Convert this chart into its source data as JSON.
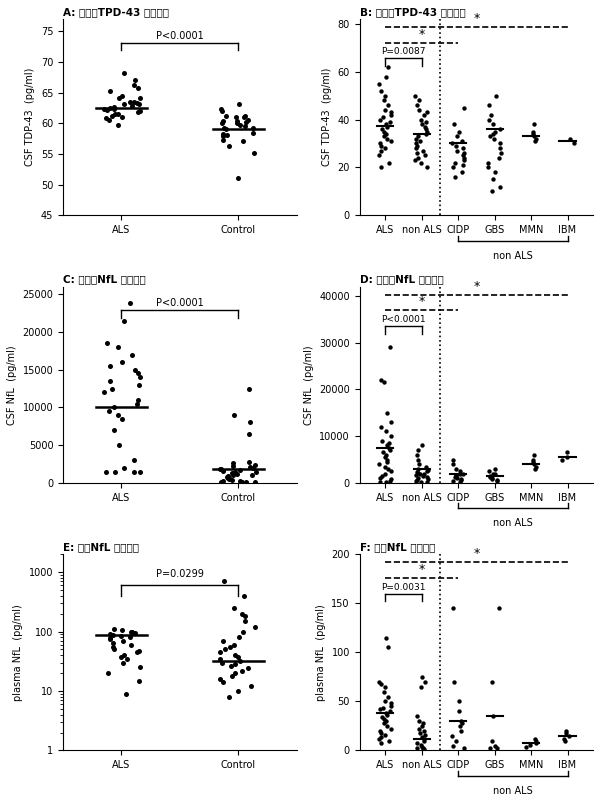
{
  "panel_titles": [
    "A: 脑脊液TPD-43 探索队列",
    "B: 脑脊液TPD-43 验证队列",
    "C: 脑脊液NfL 探索队列",
    "D: 脑脊液NfL 探索队列",
    "E: 血液NfL 探索队列",
    "F: 血液NfL 探索队列"
  ],
  "panel_A": {
    "groups": [
      "ALS",
      "Control"
    ],
    "medians": [
      62.5,
      59.0
    ],
    "ylim": [
      45,
      77
    ],
    "yticks": [
      45,
      50,
      55,
      60,
      65,
      70,
      75
    ],
    "ylabel": "CSF TDP-43  (pg/ml)",
    "pvalue": "P<0.0001",
    "ALS_data": [
      63.5,
      63.2,
      62.1,
      61.5,
      62.8,
      64.5,
      65.2,
      67.1,
      65.8,
      64.2,
      62.5,
      63.1,
      61.2,
      62.4,
      61.8,
      63.3,
      62.7,
      60.5,
      59.8,
      61.0,
      62.3,
      64.1,
      66.3,
      68.2,
      63.4,
      62.0,
      61.5,
      60.8
    ],
    "Control_data": [
      63.1,
      62.4,
      61.2,
      60.5,
      59.8,
      58.3,
      61.0,
      60.2,
      59.5,
      60.1,
      58.4,
      57.2,
      59.0,
      60.3,
      61.1,
      62.0,
      60.4,
      59.2,
      58.0,
      57.1,
      56.3,
      55.2,
      59.3,
      60.0,
      61.2,
      58.1,
      51.0
    ]
  },
  "panel_B": {
    "groups": [
      "ALS",
      "non ALS",
      "CIDP",
      "GBS",
      "MMN",
      "IBM"
    ],
    "medians": [
      37.5,
      34.0,
      30.0,
      36.0,
      33.0,
      31.0
    ],
    "ylim": [
      0,
      82
    ],
    "yticks": [
      0,
      20,
      40,
      60,
      80
    ],
    "ylabel": "CSF TDP-43  (pg/ml)",
    "pvalue": "P=0.0087",
    "ALS_data": [
      62,
      58,
      55,
      52,
      50,
      48,
      46,
      44,
      43,
      42,
      41,
      40,
      39,
      38,
      37,
      36,
      35,
      34,
      33,
      32,
      31,
      30,
      29,
      28,
      27,
      25,
      22,
      20
    ],
    "nonALS_data": [
      50,
      48,
      46,
      44,
      43,
      42,
      40,
      39,
      38,
      37,
      36,
      35,
      34,
      33,
      32,
      31,
      30,
      29,
      28,
      27,
      26,
      25,
      24,
      23,
      22,
      20
    ],
    "CIDP_data": [
      45,
      38,
      35,
      33,
      31,
      30,
      29,
      28,
      27,
      26,
      25,
      24,
      23,
      22,
      21,
      20,
      18,
      16
    ],
    "GBS_data": [
      50,
      46,
      42,
      40,
      38,
      36,
      35,
      34,
      33,
      32,
      30,
      28,
      26,
      24,
      22,
      20,
      18,
      15,
      12,
      10
    ],
    "MMN_data": [
      38,
      35,
      34,
      33,
      32,
      31
    ],
    "IBM_data": [
      32,
      30
    ]
  },
  "panel_C": {
    "groups": [
      "ALS",
      "Control"
    ],
    "medians": [
      10000,
      1800
    ],
    "ylim": [
      0,
      26000
    ],
    "yticks": [
      0,
      5000,
      10000,
      15000,
      20000,
      25000
    ],
    "ylabel": "CSF NfL  (pg/ml)",
    "pvalue": "P<0.0001",
    "ALS_data": [
      23800,
      21500,
      18500,
      18000,
      17000,
      16000,
      15500,
      15000,
      14500,
      14000,
      13500,
      13000,
      12500,
      12000,
      11000,
      10500,
      10000,
      9500,
      9000,
      8500,
      7000,
      5000,
      3000,
      2000,
      1500,
      1500,
      1500,
      1500
    ],
    "Control_data": [
      12500,
      9000,
      8000,
      6500,
      2800,
      2600,
      2400,
      2200,
      2100,
      2000,
      1900,
      1800,
      1700,
      1600,
      1500,
      1400,
      1300,
      1200,
      1100,
      1000,
      900,
      800,
      700,
      600,
      500,
      400,
      300,
      200,
      100,
      50,
      50,
      50
    ]
  },
  "panel_D": {
    "groups": [
      "ALS",
      "non ALS",
      "CIDP",
      "GBS",
      "MMN",
      "IBM"
    ],
    "medians": [
      7500,
      3000,
      2000,
      1500,
      4000,
      5500
    ],
    "ylim": [
      0,
      42000
    ],
    "yticks": [
      0,
      10000,
      20000,
      30000,
      40000
    ],
    "ylabel": "CSF NfL  (pg/ml)",
    "pvalue": "P<0.0001",
    "ALS_data": [
      29000,
      22000,
      21500,
      15000,
      13000,
      12000,
      11000,
      10000,
      9000,
      8500,
      8000,
      7500,
      7000,
      6500,
      6000,
      5500,
      5000,
      4500,
      4000,
      3500,
      3000,
      2500,
      2000,
      1500,
      1000,
      800,
      500,
      200,
      100
    ],
    "nonALS_data": [
      8000,
      7000,
      6000,
      5000,
      4000,
      3500,
      3000,
      2800,
      2600,
      2400,
      2200,
      2000,
      1800,
      1600,
      1400,
      1200,
      1000,
      800,
      600,
      400,
      200,
      100
    ],
    "CIDP_data": [
      5000,
      4000,
      3000,
      2500,
      2000,
      1800,
      1600,
      1400,
      1200,
      1000,
      800,
      600,
      400,
      200
    ],
    "GBS_data": [
      3000,
      2500,
      2000,
      1800,
      1500,
      1200,
      1000,
      800,
      600,
      400
    ],
    "MMN_data": [
      6000,
      5000,
      4500,
      4000,
      3500,
      3000
    ],
    "IBM_data": [
      6500,
      5500,
      5000
    ]
  },
  "panel_E": {
    "groups": [
      "ALS",
      "Control"
    ],
    "medians": [
      88,
      32
    ],
    "ylim_log": [
      1,
      2000
    ],
    "ylabel": "plasma NfL  (pg/ml)",
    "pvalue": "P=0.0299",
    "ALS_data": [
      110,
      105,
      100,
      98,
      95,
      90,
      88,
      85,
      80,
      78,
      75,
      70,
      65,
      60,
      55,
      50,
      48,
      45,
      40,
      38,
      35,
      30,
      25,
      20,
      15,
      9
    ],
    "Control_data": [
      700,
      400,
      250,
      200,
      180,
      150,
      120,
      100,
      80,
      70,
      60,
      55,
      50,
      45,
      40,
      38,
      35,
      32,
      30,
      28,
      26,
      24,
      22,
      20,
      18,
      16,
      14,
      12,
      10,
      8
    ]
  },
  "panel_F": {
    "groups": [
      "ALS",
      "non ALS",
      "CIDP",
      "GBS",
      "MMN",
      "IBM"
    ],
    "medians": [
      38,
      12,
      30,
      35,
      8,
      15
    ],
    "ylim": [
      0,
      200
    ],
    "yticks": [
      0,
      50,
      100,
      150,
      200
    ],
    "ylabel": "plasma NfL  (pg/ml)",
    "pvalue": "P=0.0031",
    "ALS_data": [
      105,
      115,
      70,
      68,
      65,
      60,
      55,
      50,
      48,
      45,
      43,
      42,
      40,
      38,
      36,
      34,
      32,
      30,
      28,
      25,
      22,
      20,
      18,
      16,
      14,
      12,
      10,
      8
    ],
    "nonALS_data": [
      75,
      70,
      65,
      35,
      30,
      28,
      25,
      22,
      20,
      18,
      16,
      14,
      12,
      10,
      8,
      6,
      4,
      3,
      2,
      1
    ],
    "CIDP_data": [
      145,
      70,
      50,
      40,
      30,
      28,
      25,
      20,
      15,
      10,
      5,
      2
    ],
    "GBS_data": [
      145,
      70,
      35,
      10,
      5,
      3,
      2
    ],
    "MMN_data": [
      12,
      10,
      8,
      6,
      4
    ],
    "IBM_data": [
      20,
      18,
      15,
      12,
      10
    ]
  }
}
